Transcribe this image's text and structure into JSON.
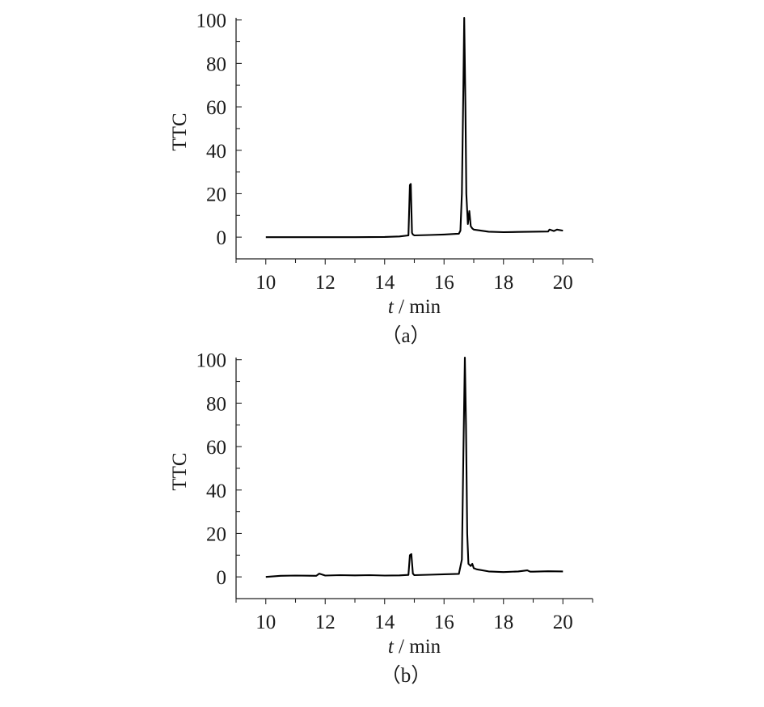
{
  "figure": {
    "panels": [
      {
        "caption": "（a）"
      },
      {
        "caption": "（b）"
      }
    ]
  },
  "chart_data": [
    {
      "type": "line",
      "panel": "(a)",
      "ylabel": "TTC",
      "xlabel_var": "t",
      "xlabel_unit": " / min",
      "xlim": [
        9,
        21
      ],
      "ylim": [
        -10,
        101
      ],
      "xticks": [
        10,
        12,
        14,
        16,
        18,
        20
      ],
      "yticks": [
        0,
        20,
        40,
        60,
        80,
        100
      ],
      "grid": false,
      "color": "#000000",
      "x": [
        10.0,
        11.0,
        12.0,
        13.0,
        14.0,
        14.5,
        14.8,
        14.85,
        14.88,
        14.92,
        14.95,
        15.0,
        15.5,
        16.0,
        16.4,
        16.5,
        16.55,
        16.6,
        16.65,
        16.68,
        16.72,
        16.75,
        16.8,
        16.85,
        16.9,
        16.95,
        17.0,
        17.5,
        18.0,
        18.5,
        19.0,
        19.5,
        19.55,
        19.7,
        19.8,
        20.0
      ],
      "y": [
        0.0,
        0.0,
        0.0,
        0.0,
        0.1,
        0.3,
        0.8,
        24.0,
        24.5,
        2.0,
        1.2,
        0.8,
        1.0,
        1.2,
        1.5,
        1.6,
        3.0,
        20.0,
        68.0,
        101.0,
        60.0,
        20.0,
        6.0,
        12.0,
        5.0,
        4.0,
        3.5,
        2.5,
        2.3,
        2.4,
        2.5,
        2.6,
        3.5,
        2.8,
        3.5,
        3.0
      ]
    },
    {
      "type": "line",
      "panel": "(b)",
      "ylabel": "TTC",
      "xlabel_var": "t",
      "xlabel_unit": " / min",
      "xlim": [
        9,
        21
      ],
      "ylim": [
        -10,
        101
      ],
      "xticks": [
        10,
        12,
        14,
        16,
        18,
        20
      ],
      "yticks": [
        0,
        20,
        40,
        60,
        80,
        100
      ],
      "grid": false,
      "color": "#000000",
      "x": [
        10.0,
        10.5,
        11.0,
        11.7,
        11.8,
        12.0,
        12.5,
        13.0,
        13.5,
        14.0,
        14.5,
        14.8,
        14.85,
        14.9,
        14.95,
        15.0,
        15.5,
        16.0,
        16.5,
        16.6,
        16.65,
        16.7,
        16.74,
        16.78,
        16.82,
        16.9,
        16.95,
        17.0,
        17.1,
        17.5,
        18.0,
        18.5,
        18.8,
        18.9,
        19.0,
        19.5,
        20.0
      ],
      "y": [
        0.0,
        0.5,
        0.6,
        0.5,
        1.5,
        0.6,
        0.8,
        0.7,
        0.8,
        0.6,
        0.7,
        0.9,
        10.0,
        10.5,
        1.5,
        0.8,
        1.0,
        1.2,
        1.4,
        8.0,
        55.0,
        101.0,
        70.0,
        20.0,
        6.0,
        5.0,
        6.0,
        4.0,
        3.5,
        2.5,
        2.2,
        2.5,
        3.0,
        2.4,
        2.4,
        2.6,
        2.5
      ]
    }
  ]
}
